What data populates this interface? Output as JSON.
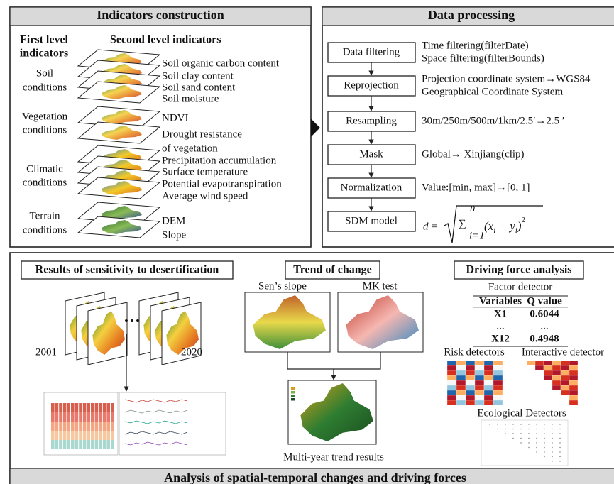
{
  "indicators": {
    "title": "Indicators construction",
    "first_level_header": [
      "First level",
      "indicators"
    ],
    "second_level_header": "Second level indicators",
    "groups": [
      {
        "name": [
          "Soil",
          "conditions"
        ],
        "items": [
          "Soil organic carbon content",
          "Soil clay content",
          "Soil sand content",
          "Soil moisture"
        ]
      },
      {
        "name": [
          "Vegetation",
          "conditions"
        ],
        "items": [
          "NDVI",
          "Drought resistance",
          "of vegetation"
        ]
      },
      {
        "name": [
          "Climatic",
          "conditions"
        ],
        "items": [
          "Precipitation accumulation",
          "Surface temperature",
          "Potential evapotranspiration",
          "Average wind speed"
        ]
      },
      {
        "name": [
          "Terrain",
          "conditions"
        ],
        "items": [
          "DEM",
          "Slope"
        ]
      }
    ]
  },
  "data_processing": {
    "title": "Data processing",
    "steps": [
      {
        "name": "Data filtering",
        "details": [
          "Time filtering(filterDate)",
          "Space filtering(filterBounds)"
        ]
      },
      {
        "name": "Reprojection",
        "details": [
          "Projection coordinate system→WGS84",
          "Geographical Coordinate System"
        ]
      },
      {
        "name": "Resampling",
        "details": [
          "30m/250m/500m/1km/2.5′→2.5 ′"
        ]
      },
      {
        "name": "Mask",
        "details": [
          "Global→ Xinjiang(clip)"
        ]
      },
      {
        "name": "Normalization",
        "details": [
          "Value:[min, max]→[0, 1]"
        ]
      },
      {
        "name": "SDM model",
        "formula": {
          "lhs": "d =",
          "sigma": "∑",
          "upper": "n",
          "lower": "i=1",
          "body": [
            "(x",
            "i",
            " − y",
            "i",
            ")"
          ],
          "power": "2"
        }
      }
    ]
  },
  "sensitivity": {
    "title": "Results of sensitivity to desertification",
    "years": [
      "2001",
      "2020"
    ]
  },
  "trend": {
    "title": "Trend of change",
    "maps": [
      "Sen’s slope",
      "MK test"
    ],
    "result": "Multi-year trend results"
  },
  "driving": {
    "title": "Driving force analysis",
    "factor_detector": "Factor detector",
    "table": {
      "header": [
        "Variables",
        "Q value"
      ],
      "rows": [
        [
          "X1",
          "0.6044"
        ],
        [
          "...",
          "..."
        ],
        [
          "X12",
          "0.4948"
        ]
      ]
    },
    "detectors": [
      "Risk detectors",
      "Interactive detector"
    ],
    "ecological": "Ecological Detectors"
  },
  "footer": "Analysis of spatial-temporal changes and driving forces"
}
